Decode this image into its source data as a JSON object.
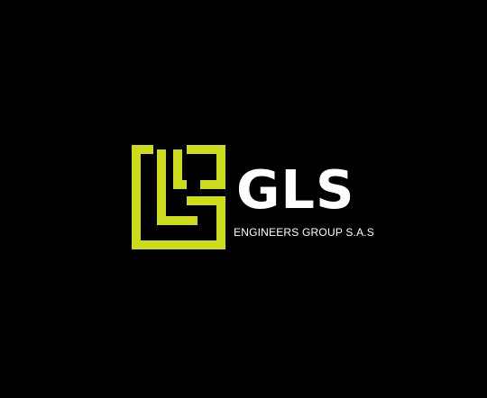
{
  "brand": {
    "name": "GLS",
    "tagline": "ENGINEERS GROUP S.A.S"
  },
  "colors": {
    "background": "#000000",
    "accent": "#cddc1a",
    "text": "#ffffff"
  },
  "icons": {
    "logo_mark": "gls-monogram-icon"
  }
}
